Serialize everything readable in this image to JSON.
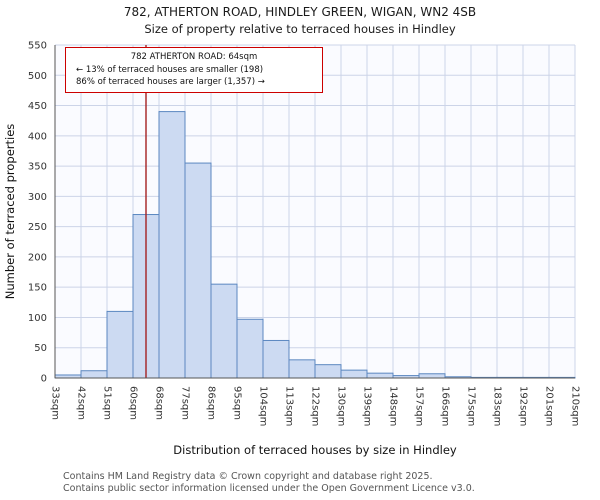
{
  "title": "782, ATHERTON ROAD, HINDLEY GREEN, WIGAN, WN2 4SB",
  "subtitle": "Size of property relative to terraced houses in Hindley",
  "annotation": {
    "line1": "782 ATHERTON ROAD: 64sqm",
    "line2": "← 13% of terraced houses are smaller (198)",
    "line3": "86% of terraced houses are larger (1,357) →"
  },
  "footer": {
    "line1": "Contains HM Land Registry data © Crown copyright and database right 2025.",
    "line2": "Contains public sector information licensed under the Open Government Licence v3.0."
  },
  "chart_data": {
    "type": "bar",
    "title": "782, ATHERTON ROAD, HINDLEY GREEN, WIGAN, WN2 4SB",
    "subtitle": "Size of property relative to terraced houses in Hindley",
    "xlabel": "Distribution of terraced houses by size in Hindley",
    "ylabel": "Number of terraced properties",
    "ylim": [
      0,
      550
    ],
    "ytick_step": 50,
    "grid": true,
    "legend": "none",
    "bin_edges": [
      33,
      42,
      51,
      60,
      68,
      77,
      86,
      95,
      104,
      113,
      122,
      130,
      139,
      148,
      157,
      166,
      175,
      183,
      192,
      201,
      210
    ],
    "tick_labels": [
      "33sqm",
      "42sqm",
      "51sqm",
      "60sqm",
      "68sqm",
      "77sqm",
      "86sqm",
      "95sqm",
      "104sqm",
      "113sqm",
      "122sqm",
      "130sqm",
      "139sqm",
      "148sqm",
      "157sqm",
      "166sqm",
      "175sqm",
      "183sqm",
      "192sqm",
      "201sqm",
      "210sqm"
    ],
    "values": [
      5,
      12,
      110,
      270,
      440,
      355,
      155,
      97,
      62,
      30,
      22,
      13,
      8,
      4,
      7,
      2,
      1,
      1,
      1,
      1
    ],
    "marker": {
      "value_sqm": 64,
      "pct_smaller": 13,
      "count_smaller": 198,
      "pct_larger": 86,
      "count_larger": 1357
    },
    "colors": {
      "bar_fill": "#ccdaf2",
      "bar_stroke": "#5b87c0",
      "grid": "#ccd4e8",
      "plot_bg": "#fafbff",
      "spine": "#555555",
      "marker": "#a52121",
      "annotation_border": "#cc0000",
      "tick_text": "#333333",
      "label_text": "#111111"
    }
  }
}
